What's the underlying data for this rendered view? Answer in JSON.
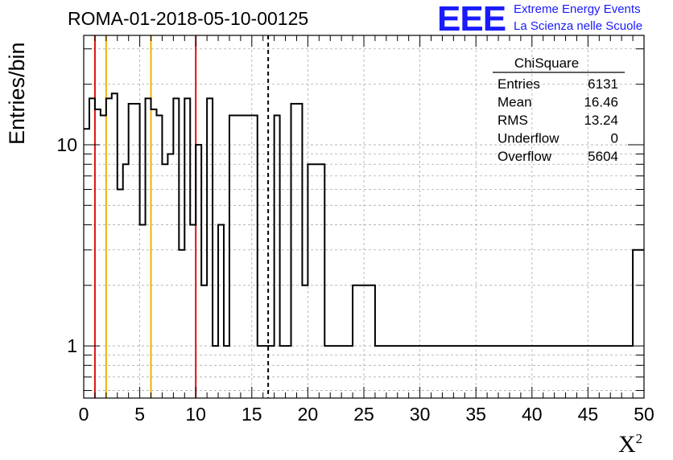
{
  "title": "ROMA-01-2018-05-10-00125",
  "brand": {
    "logo": "EEE",
    "line1": "Extreme Energy Events",
    "line2": "La Scienza nelle Scuole",
    "color": "#1a1aff"
  },
  "stats": {
    "title": "ChiSquare",
    "rows": [
      {
        "label": "Entries",
        "value": "6131"
      },
      {
        "label": "Mean",
        "value": "16.46"
      },
      {
        "label": "RMS",
        "value": "13.24"
      },
      {
        "label": "Underflow",
        "value": "0"
      },
      {
        "label": "Overflow",
        "value": "5604"
      }
    ]
  },
  "chart_data": {
    "type": "step-histogram",
    "title": "ROMA-01-2018-05-10-00125",
    "xlabel_base": "X",
    "xlabel_sup": "2",
    "ylabel": "Entries/bin",
    "xlim": [
      0,
      50
    ],
    "ylim": [
      0.55,
      35
    ],
    "yscale": "log",
    "grid": true,
    "bin_width": 0.5,
    "x_ticks": [
      "0",
      "5",
      "10",
      "15",
      "20",
      "25",
      "30",
      "35",
      "40",
      "45",
      "50"
    ],
    "y_ticks": [
      "1",
      "10"
    ],
    "values": [
      12,
      17,
      15,
      14,
      17,
      18,
      6,
      8,
      16,
      16,
      4,
      17,
      15,
      14,
      8,
      9,
      17,
      3,
      17,
      4,
      10,
      2,
      17,
      1,
      4,
      1,
      14,
      14,
      14,
      14,
      14,
      1,
      1,
      1,
      14,
      1,
      1,
      16,
      16,
      2,
      8,
      8,
      8,
      1,
      1,
      1,
      1,
      1,
      2,
      2,
      2,
      2,
      1,
      1,
      1,
      1,
      1,
      1,
      1,
      1,
      1,
      1,
      1,
      1,
      1,
      1,
      1,
      1,
      1,
      1,
      1,
      1,
      1,
      1,
      1,
      1,
      1,
      1,
      1,
      1,
      1,
      1,
      1,
      1,
      1,
      1,
      1,
      1,
      1,
      1,
      1,
      1,
      1,
      1,
      1,
      1,
      1,
      1,
      3,
      3
    ],
    "vlines": [
      {
        "x": 1,
        "color": "#dd1111",
        "style": "solid"
      },
      {
        "x": 2,
        "color": "#f0b400",
        "style": "solid"
      },
      {
        "x": 6,
        "color": "#f0b400",
        "style": "solid"
      },
      {
        "x": 10,
        "color": "#dd1111",
        "style": "solid"
      },
      {
        "x": 16.46,
        "color": "#000000",
        "style": "dashed"
      }
    ]
  }
}
